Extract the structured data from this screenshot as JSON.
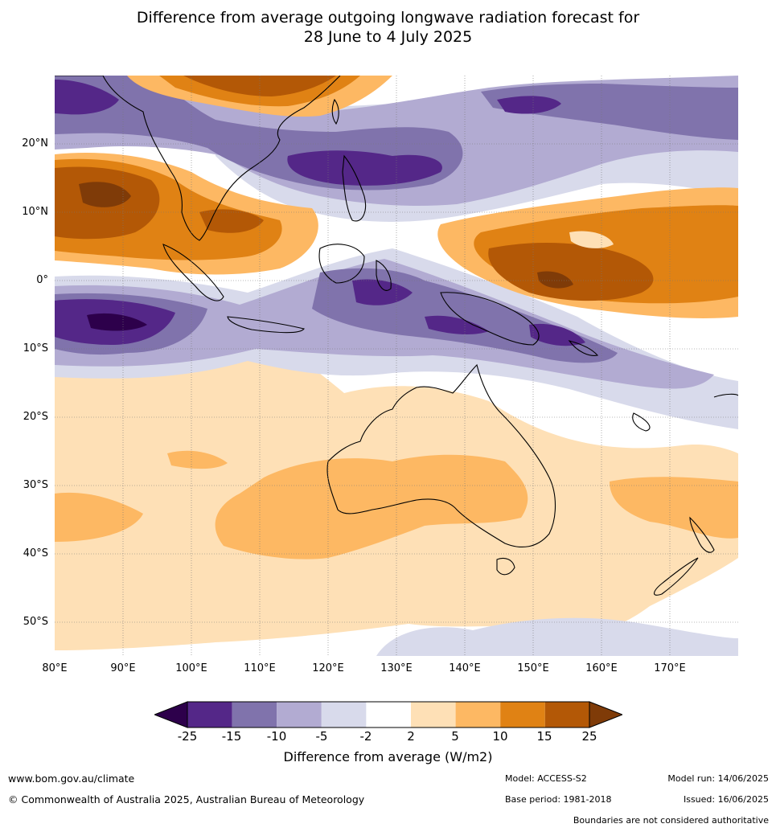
{
  "title_line1": "Difference from average outgoing longwave radiation forecast for",
  "title_line2": "28 June to 4 July 2025",
  "lat_labels": [
    "20°N",
    "10°N",
    "0°",
    "10°S",
    "20°S",
    "30°S",
    "40°S",
    "50°S"
  ],
  "lon_labels": [
    "80°E",
    "90°E",
    "100°E",
    "110°E",
    "120°E",
    "130°E",
    "140°E",
    "150°E",
    "160°E",
    "170°E"
  ],
  "colorbar": {
    "ticks": [
      "-25",
      "-15",
      "-10",
      "-5",
      "-2",
      "2",
      "5",
      "10",
      "15",
      "25"
    ],
    "colors": [
      "#2d004b",
      "#542788",
      "#8073ac",
      "#b2abd2",
      "#d8daeb",
      "#ffffff",
      "#fee0b6",
      "#fdb863",
      "#e08214",
      "#b35806",
      "#7f3b08"
    ],
    "label": "Difference from average (W/m2)"
  },
  "map": {
    "extent_lon": [
      80,
      180
    ],
    "extent_lat": [
      -55,
      30
    ],
    "gridlines": true
  },
  "footer": {
    "website": "www.bom.gov.au/climate",
    "copyright": "© Commonwealth of Australia 2025, Australian Bureau of Meteorology",
    "model": "Model: ACCESS-S2",
    "base_period": "Base period: 1981-2018",
    "model_run": "Model run: 14/06/2025",
    "issued": "Issued: 16/06/2025",
    "disclaimer": "Boundaries are not considered authoritative"
  }
}
